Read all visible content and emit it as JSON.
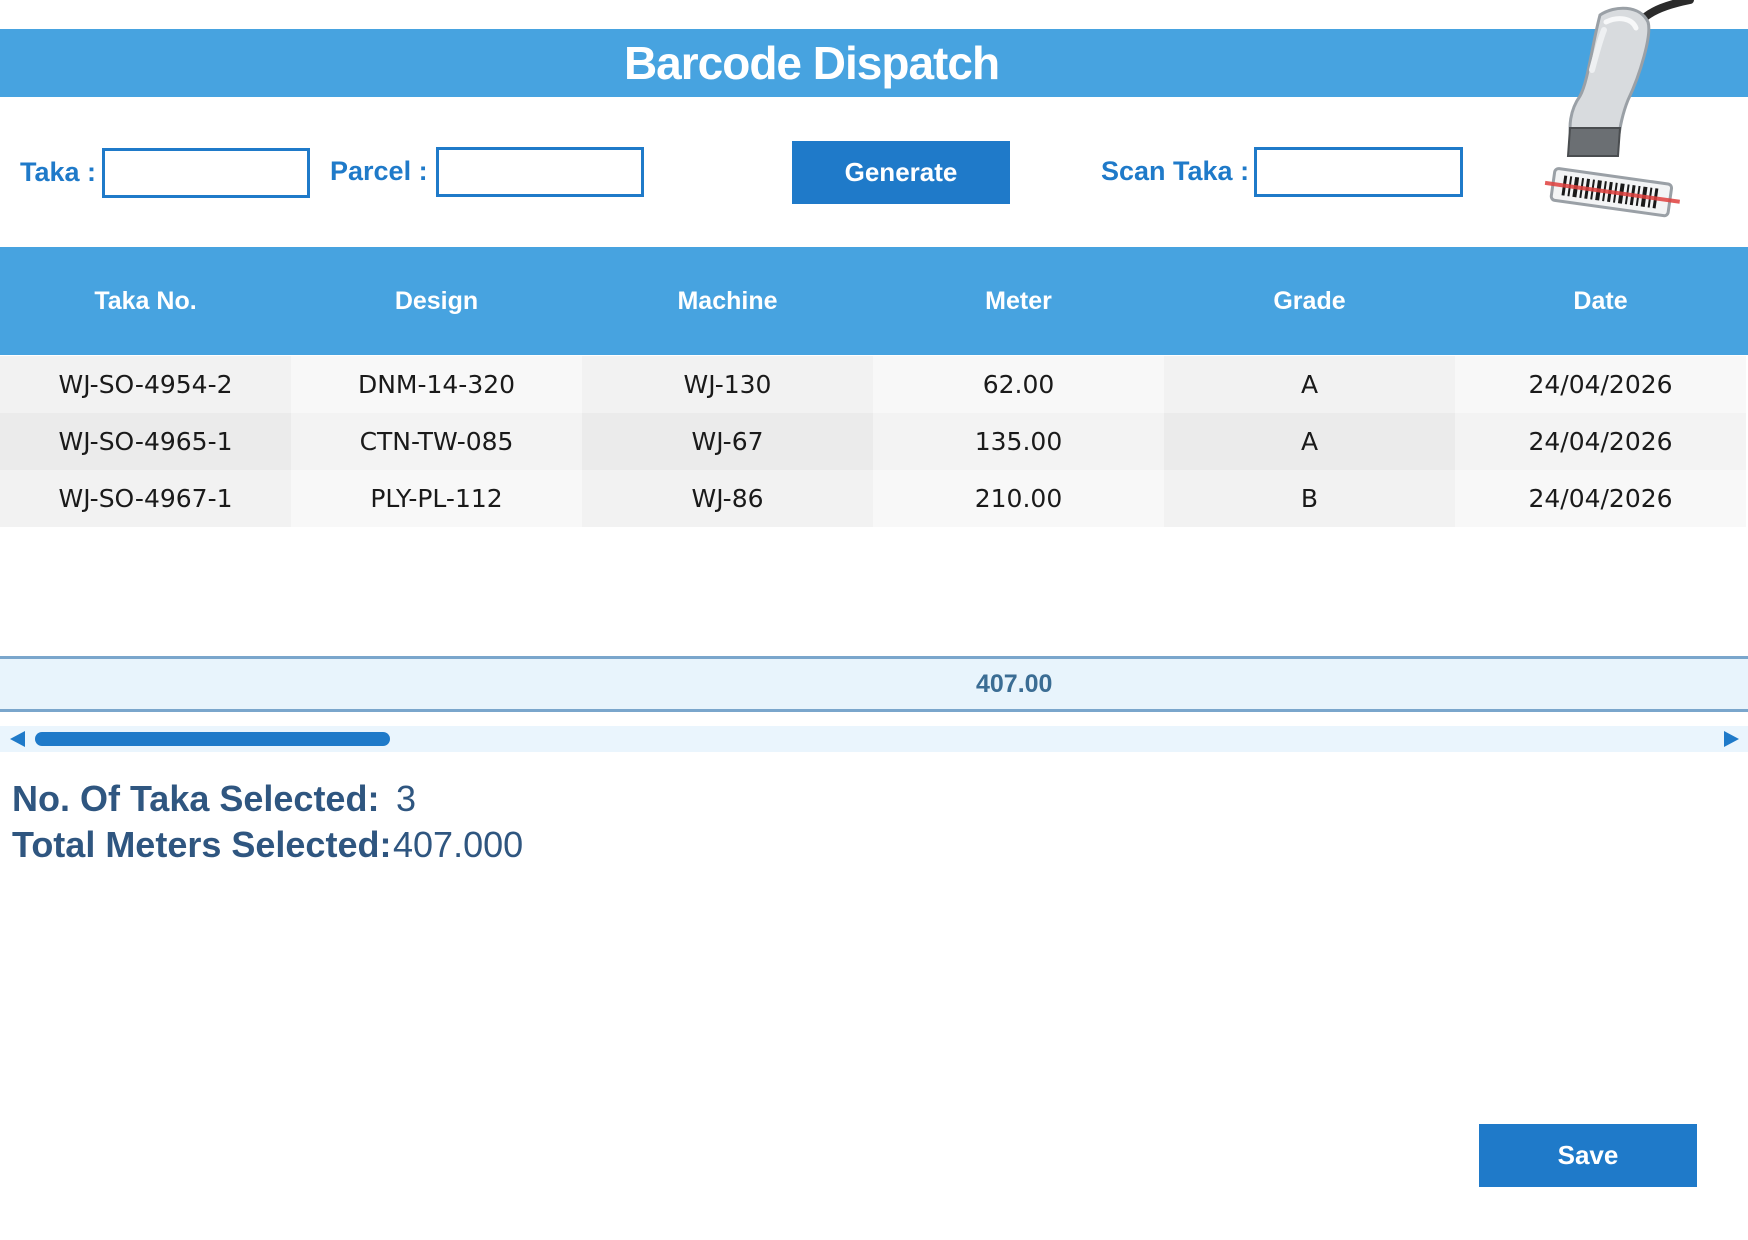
{
  "header": {
    "title": "Barcode Dispatch"
  },
  "form": {
    "taka_label": "Taka :",
    "taka_value": "",
    "parcel_label": "Parcel :",
    "parcel_value": "",
    "generate_label": "Generate",
    "scan_taka_label": "Scan Taka :",
    "scan_taka_value": ""
  },
  "table": {
    "columns": [
      "Taka No.",
      "Design",
      "Machine",
      "Meter",
      "Grade",
      "Date"
    ],
    "rows": [
      [
        "WJ-SO-4954-2",
        "DNM-14-320",
        "WJ-130",
        "62.00",
        "A",
        "24/04/2026"
      ],
      [
        "WJ-SO-4965-1",
        "CTN-TW-085",
        "WJ-67",
        "135.00",
        "A",
        "24/04/2026"
      ],
      [
        "WJ-SO-4967-1",
        "PLY-PL-112",
        "WJ-86",
        "210.00",
        "B",
        "24/04/2026"
      ]
    ],
    "total_meter": "407.00"
  },
  "scrollbar": {
    "position_fraction": 0.0
  },
  "summary": {
    "taka_selected_label": "No. Of Taka Selected:",
    "taka_selected_value": "3",
    "meters_selected_label": "Total Meters Selected:",
    "meters_selected_value": "407.000"
  },
  "actions": {
    "save_label": "Save"
  },
  "colors": {
    "header_blue": "#47a3e0",
    "button_blue": "#1f7ac9",
    "summary_text": "#2f5680"
  },
  "icons": {
    "scanner": "barcode-scanner-icon"
  }
}
